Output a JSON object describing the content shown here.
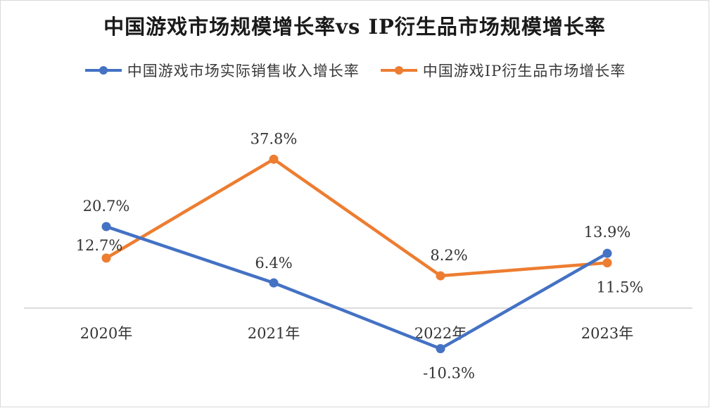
{
  "chart_data": {
    "type": "line",
    "title": "中国游戏市场规模增长率vs IP衍生品市场规模增长率",
    "categories": [
      "2020年",
      "2021年",
      "2022年",
      "2023年"
    ],
    "series": [
      {
        "name": "中国游戏市场实际销售收入增长率",
        "color": "#4472C4",
        "values": [
          20.7,
          6.4,
          -10.3,
          13.9
        ],
        "labels": [
          "20.7%",
          "6.4%",
          "-10.3%",
          "13.9%"
        ]
      },
      {
        "name": "中国游戏IP衍生品市场增长率",
        "color": "#ED7D31",
        "values": [
          12.7,
          37.8,
          8.2,
          11.5
        ],
        "labels": [
          "12.7%",
          "37.8%",
          "8.2%",
          "11.5%"
        ]
      }
    ],
    "xlabel": "",
    "ylabel": "",
    "ylim": [
      -20,
      45
    ],
    "grid": false,
    "legend_position": "top"
  }
}
